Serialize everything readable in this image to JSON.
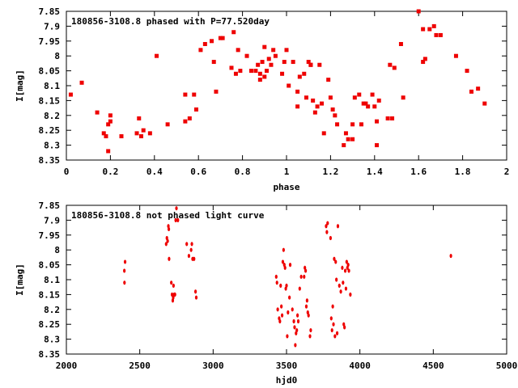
{
  "chart_data": [
    {
      "type": "scatter",
      "title": "180856-3108.8 phased with P=77.520day",
      "xlabel": "phase",
      "ylabel": "I[mag]",
      "xlim": [
        0,
        2
      ],
      "ylim": [
        8.35,
        7.85
      ],
      "y_inverted": true,
      "x_ticks": [
        "0",
        "0.2",
        "0.4",
        "0.6",
        "0.8",
        "1",
        "1.2",
        "1.4",
        "1.6",
        "1.8",
        "2"
      ],
      "y_ticks": [
        "7.85",
        "7.9",
        "7.95",
        "8",
        "8.05",
        "8.1",
        "8.15",
        "8.2",
        "8.25",
        "8.3",
        "8.35"
      ],
      "grid": false,
      "color": "#ee0000",
      "series": [
        {
          "points": [
            [
              0.02,
              8.13
            ],
            [
              0.07,
              8.09
            ],
            [
              0.14,
              8.19
            ],
            [
              0.17,
              8.26
            ],
            [
              0.18,
              8.27
            ],
            [
              0.19,
              8.23
            ],
            [
              0.19,
              8.32
            ],
            [
              0.2,
              8.22
            ],
            [
              0.2,
              8.2
            ],
            [
              0.25,
              8.27
            ],
            [
              0.32,
              8.26
            ],
            [
              0.33,
              8.21
            ],
            [
              0.34,
              8.27
            ],
            [
              0.35,
              8.25
            ],
            [
              0.38,
              8.26
            ],
            [
              0.41,
              8.0
            ],
            [
              0.46,
              8.23
            ],
            [
              0.54,
              8.13
            ],
            [
              0.54,
              8.22
            ],
            [
              0.56,
              8.21
            ],
            [
              0.58,
              8.13
            ],
            [
              0.59,
              8.18
            ],
            [
              0.61,
              7.98
            ],
            [
              0.63,
              7.96
            ],
            [
              0.66,
              7.95
            ],
            [
              0.67,
              8.02
            ],
            [
              0.68,
              8.12
            ],
            [
              0.7,
              7.94
            ],
            [
              0.71,
              7.94
            ],
            [
              0.75,
              8.04
            ],
            [
              0.76,
              7.92
            ],
            [
              0.77,
              8.06
            ],
            [
              0.78,
              7.98
            ],
            [
              0.79,
              8.05
            ],
            [
              0.82,
              8.0
            ],
            [
              0.84,
              8.05
            ],
            [
              0.86,
              8.05
            ],
            [
              0.87,
              8.03
            ],
            [
              0.88,
              8.06
            ],
            [
              0.88,
              8.08
            ],
            [
              0.89,
              8.02
            ],
            [
              0.9,
              7.97
            ],
            [
              0.9,
              8.07
            ],
            [
              0.91,
              8.05
            ],
            [
              0.92,
              8.01
            ],
            [
              0.93,
              8.03
            ],
            [
              0.94,
              7.98
            ],
            [
              0.95,
              8.0
            ],
            [
              0.98,
              8.06
            ],
            [
              0.99,
              8.02
            ],
            [
              1.0,
              7.98
            ],
            [
              1.01,
              8.1
            ],
            [
              1.03,
              8.02
            ],
            [
              1.05,
              8.12
            ],
            [
              1.05,
              8.17
            ],
            [
              1.06,
              8.07
            ],
            [
              1.08,
              8.06
            ],
            [
              1.09,
              8.14
            ],
            [
              1.1,
              8.02
            ],
            [
              1.11,
              8.03
            ],
            [
              1.11,
              8.03
            ],
            [
              1.12,
              8.15
            ],
            [
              1.13,
              8.19
            ],
            [
              1.14,
              8.17
            ],
            [
              1.15,
              8.03
            ],
            [
              1.16,
              8.16
            ],
            [
              1.17,
              8.26
            ],
            [
              1.19,
              8.08
            ],
            [
              1.2,
              8.14
            ],
            [
              1.21,
              8.18
            ],
            [
              1.22,
              8.2
            ],
            [
              1.23,
              8.23
            ],
            [
              1.26,
              8.3
            ],
            [
              1.27,
              8.26
            ],
            [
              1.28,
              8.28
            ],
            [
              1.3,
              8.28
            ],
            [
              1.3,
              8.23
            ],
            [
              1.31,
              8.14
            ],
            [
              1.33,
              8.13
            ],
            [
              1.34,
              8.23
            ],
            [
              1.35,
              8.16
            ],
            [
              1.36,
              8.16
            ],
            [
              1.37,
              8.17
            ],
            [
              1.39,
              8.13
            ],
            [
              1.4,
              8.17
            ],
            [
              1.41,
              8.22
            ],
            [
              1.41,
              8.3
            ],
            [
              1.42,
              8.15
            ],
            [
              1.46,
              8.21
            ],
            [
              1.47,
              8.03
            ],
            [
              1.48,
              8.21
            ],
            [
              1.49,
              8.04
            ],
            [
              1.52,
              7.96
            ],
            [
              1.53,
              8.14
            ],
            [
              1.6,
              7.85
            ],
            [
              1.62,
              8.02
            ],
            [
              1.62,
              7.91
            ],
            [
              1.63,
              8.01
            ],
            [
              1.65,
              7.91
            ],
            [
              1.67,
              7.9
            ],
            [
              1.68,
              7.93
            ],
            [
              1.7,
              7.93
            ],
            [
              1.77,
              8.0
            ],
            [
              1.82,
              8.05
            ],
            [
              1.84,
              8.12
            ],
            [
              1.87,
              8.11
            ],
            [
              1.9,
              8.16
            ]
          ]
        }
      ]
    },
    {
      "type": "scatter",
      "title": "180856-3108.8 not phased light curve",
      "xlabel": "hjd0",
      "ylabel": "I[mag]",
      "xlim": [
        2000,
        5000
      ],
      "ylim": [
        8.35,
        7.85
      ],
      "y_inverted": true,
      "x_ticks": [
        "2000",
        "2500",
        "3000",
        "3500",
        "4000",
        "4500",
        "5000"
      ],
      "y_ticks": [
        "7.85",
        "7.9",
        "7.95",
        "8",
        "8.05",
        "8.1",
        "8.15",
        "8.2",
        "8.25",
        "8.3",
        "8.35"
      ],
      "grid": false,
      "color": "#ee0000",
      "series": [
        {
          "points": [
            [
              2395,
              8.07
            ],
            [
              2396,
              8.11
            ],
            [
              2400,
              8.04
            ],
            [
              2680,
              7.98
            ],
            [
              2685,
              7.96
            ],
            [
              2690,
              7.97
            ],
            [
              2695,
              7.92
            ],
            [
              2698,
              7.93
            ],
            [
              2700,
              8.03
            ],
            [
              2715,
              8.11
            ],
            [
              2720,
              8.15
            ],
            [
              2725,
              8.17
            ],
            [
              2728,
              8.16
            ],
            [
              2730,
              8.12
            ],
            [
              2735,
              8.15
            ],
            [
              2740,
              8.15
            ],
            [
              2745,
              7.9
            ],
            [
              2750,
              7.86
            ],
            [
              2760,
              7.9
            ],
            [
              2820,
              7.98
            ],
            [
              2835,
              8.02
            ],
            [
              2850,
              8.0
            ],
            [
              2855,
              7.98
            ],
            [
              2860,
              8.03
            ],
            [
              2870,
              8.03
            ],
            [
              2880,
              8.14
            ],
            [
              2885,
              8.16
            ],
            [
              3430,
              8.09
            ],
            [
              3435,
              8.11
            ],
            [
              3440,
              8.2
            ],
            [
              3450,
              8.23
            ],
            [
              3455,
              8.24
            ],
            [
              3460,
              8.12
            ],
            [
              3465,
              8.19
            ],
            [
              3470,
              8.22
            ],
            [
              3475,
              8.04
            ],
            [
              3480,
              8.0
            ],
            [
              3485,
              8.05
            ],
            [
              3490,
              8.06
            ],
            [
              3495,
              8.13
            ],
            [
              3500,
              8.12
            ],
            [
              3505,
              8.29
            ],
            [
              3510,
              8.21
            ],
            [
              3520,
              8.16
            ],
            [
              3525,
              8.05
            ],
            [
              3540,
              8.2
            ],
            [
              3550,
              8.24
            ],
            [
              3555,
              8.26
            ],
            [
              3560,
              8.32
            ],
            [
              3565,
              8.28
            ],
            [
              3570,
              8.27
            ],
            [
              3575,
              8.22
            ],
            [
              3580,
              8.24
            ],
            [
              3590,
              8.13
            ],
            [
              3600,
              8.09
            ],
            [
              3620,
              8.09
            ],
            [
              3625,
              8.06
            ],
            [
              3630,
              8.07
            ],
            [
              3635,
              8.19
            ],
            [
              3640,
              8.17
            ],
            [
              3645,
              8.21
            ],
            [
              3650,
              8.22
            ],
            [
              3660,
              8.29
            ],
            [
              3665,
              8.27
            ],
            [
              3770,
              7.92
            ],
            [
              3775,
              7.94
            ],
            [
              3780,
              7.91
            ],
            [
              3800,
              7.96
            ],
            [
              3805,
              8.23
            ],
            [
              3810,
              8.27
            ],
            [
              3815,
              8.19
            ],
            [
              3820,
              8.25
            ],
            [
              3825,
              8.03
            ],
            [
              3830,
              8.29
            ],
            [
              3835,
              8.04
            ],
            [
              3840,
              8.1
            ],
            [
              3845,
              8.28
            ],
            [
              3850,
              7.92
            ],
            [
              3860,
              8.12
            ],
            [
              3870,
              8.14
            ],
            [
              3880,
              8.06
            ],
            [
              3885,
              8.11
            ],
            [
              3890,
              8.25
            ],
            [
              3895,
              8.26
            ],
            [
              3900,
              8.07
            ],
            [
              3905,
              8.13
            ],
            [
              3910,
              8.04
            ],
            [
              3915,
              8.06
            ],
            [
              3920,
              8.05
            ],
            [
              3925,
              8.07
            ],
            [
              3935,
              8.15
            ],
            [
              4620,
              8.02
            ]
          ]
        }
      ]
    }
  ]
}
